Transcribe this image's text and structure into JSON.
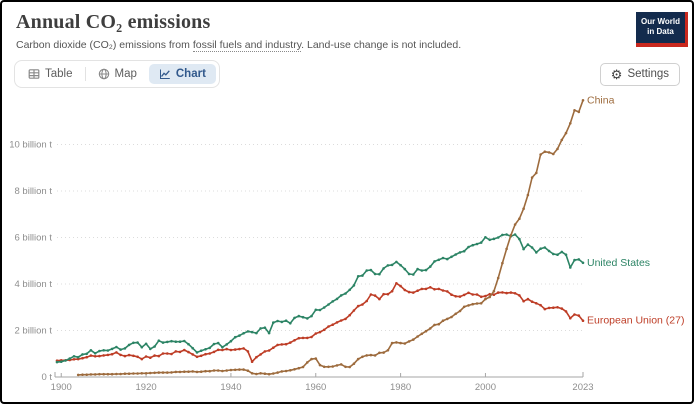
{
  "header": {
    "title": "Annual CO₂ emissions",
    "subtitle": {
      "prefix": "Carbon dioxide (CO₂) emissions from ",
      "link": "fossil fuels and industry",
      "suffix": ". Land-use change is not included."
    },
    "logo": {
      "line1": "Our World",
      "line2": "in Data",
      "bg": "#132B4D",
      "accent": "#C9281E"
    }
  },
  "toolbar": {
    "tabs": [
      {
        "label": "Table",
        "icon": "table-icon",
        "active": false
      },
      {
        "label": "Map",
        "icon": "globe-icon",
        "active": false
      },
      {
        "label": "Chart",
        "icon": "line-chart-icon",
        "active": true
      }
    ],
    "settings_label": "Settings",
    "settings_icon": "gear-icon"
  },
  "chart_data": {
    "type": "line",
    "title": "Annual CO₂ emissions",
    "xlabel": "",
    "ylabel": "",
    "unit": "billion t",
    "xlim": [
      1899,
      2023
    ],
    "ylim": [
      0,
      12.1
    ],
    "grid": true,
    "legend_position": "line-end-labels-right",
    "yticks": [
      {
        "value": 0,
        "label": "0 t"
      },
      {
        "value": 2,
        "label": "2 billion t"
      },
      {
        "value": 4,
        "label": "4 billion t"
      },
      {
        "value": 6,
        "label": "6 billion t"
      },
      {
        "value": 8,
        "label": "8 billion t"
      },
      {
        "value": 10,
        "label": "10 billion t"
      }
    ],
    "xticks": [
      1900,
      1920,
      1940,
      1960,
      1980,
      2000,
      2023
    ],
    "series": [
      {
        "name": "China",
        "color": "#9D6B3D",
        "start_year": 1904,
        "values": [
          0.09,
          0.1,
          0.1,
          0.11,
          0.11,
          0.12,
          0.12,
          0.12,
          0.12,
          0.13,
          0.13,
          0.14,
          0.14,
          0.15,
          0.15,
          0.16,
          0.16,
          0.17,
          0.18,
          0.19,
          0.19,
          0.19,
          0.2,
          0.22,
          0.22,
          0.23,
          0.23,
          0.24,
          0.22,
          0.23,
          0.25,
          0.25,
          0.28,
          0.28,
          0.26,
          0.28,
          0.3,
          0.31,
          0.32,
          0.32,
          0.27,
          0.16,
          0.13,
          0.16,
          0.14,
          0.12,
          0.15,
          0.19,
          0.24,
          0.26,
          0.29,
          0.33,
          0.38,
          0.43,
          0.63,
          0.77,
          0.79,
          0.51,
          0.44,
          0.44,
          0.45,
          0.5,
          0.54,
          0.44,
          0.43,
          0.57,
          0.77,
          0.87,
          0.93,
          0.94,
          0.93,
          1.04,
          1.05,
          1.15,
          1.46,
          1.49,
          1.46,
          1.44,
          1.53,
          1.61,
          1.74,
          1.86,
          1.97,
          2.09,
          2.24,
          2.27,
          2.42,
          2.5,
          2.58,
          2.72,
          2.84,
          3.02,
          3.08,
          3.13,
          3.16,
          3.17,
          3.35,
          3.44,
          3.69,
          4.26,
          4.9,
          5.51,
          6.1,
          6.56,
          6.81,
          7.24,
          7.83,
          8.58,
          8.78,
          9.57,
          9.69,
          9.66,
          9.59,
          9.81,
          10.2,
          10.49,
          10.91,
          11.47,
          11.4,
          11.9
        ]
      },
      {
        "name": "United States",
        "color": "#2C8465",
        "start_year": 1899,
        "values": [
          0.64,
          0.66,
          0.71,
          0.79,
          0.89,
          0.85,
          0.97,
          1.0,
          1.15,
          1.02,
          1.12,
          1.15,
          1.14,
          1.21,
          1.29,
          1.18,
          1.23,
          1.38,
          1.47,
          1.48,
          1.28,
          1.43,
          1.21,
          1.31,
          1.56,
          1.48,
          1.51,
          1.54,
          1.52,
          1.52,
          1.55,
          1.41,
          1.24,
          1.06,
          1.13,
          1.19,
          1.25,
          1.42,
          1.46,
          1.28,
          1.4,
          1.54,
          1.71,
          1.78,
          1.88,
          1.96,
          1.93,
          1.89,
          2.09,
          2.12,
          1.89,
          2.34,
          2.41,
          2.37,
          2.42,
          2.31,
          2.54,
          2.62,
          2.57,
          2.52,
          2.62,
          2.89,
          2.88,
          2.99,
          3.12,
          3.25,
          3.36,
          3.51,
          3.59,
          3.75,
          3.94,
          4.33,
          4.36,
          4.58,
          4.6,
          4.43,
          4.42,
          4.67,
          4.8,
          4.82,
          4.95,
          4.81,
          4.64,
          4.43,
          4.41,
          4.64,
          4.58,
          4.6,
          4.75,
          4.97,
          5.04,
          5.12,
          5.07,
          5.17,
          5.27,
          5.36,
          5.41,
          5.59,
          5.67,
          5.72,
          5.78,
          6.01,
          5.9,
          5.94,
          6.0,
          6.11,
          6.13,
          6.05,
          6.13,
          5.93,
          5.5,
          5.7,
          5.57,
          5.36,
          5.52,
          5.57,
          5.42,
          5.29,
          5.26,
          5.38,
          5.26,
          4.71,
          5.03,
          5.06,
          4.91
        ]
      },
      {
        "name": "European Union (27)",
        "color": "#BE3D26",
        "start_year": 1899,
        "values": [
          0.7,
          0.72,
          0.72,
          0.73,
          0.76,
          0.77,
          0.81,
          0.85,
          0.92,
          0.89,
          0.9,
          0.93,
          0.95,
          0.98,
          1.06,
          0.95,
          0.9,
          0.94,
          0.91,
          0.87,
          0.77,
          0.88,
          0.83,
          0.92,
          0.9,
          1.01,
          1.01,
          0.99,
          1.1,
          1.08,
          1.16,
          1.07,
          0.97,
          0.87,
          0.91,
          0.98,
          1.01,
          1.08,
          1.17,
          1.16,
          1.2,
          1.16,
          1.18,
          1.2,
          1.23,
          1.1,
          0.66,
          0.85,
          0.97,
          1.1,
          1.14,
          1.26,
          1.38,
          1.4,
          1.41,
          1.48,
          1.58,
          1.67,
          1.68,
          1.68,
          1.72,
          1.87,
          1.93,
          2.03,
          2.17,
          2.25,
          2.35,
          2.43,
          2.5,
          2.66,
          2.86,
          3.05,
          3.12,
          3.27,
          3.55,
          3.5,
          3.35,
          3.56,
          3.56,
          3.69,
          4.03,
          3.91,
          3.74,
          3.65,
          3.63,
          3.71,
          3.79,
          3.79,
          3.86,
          3.77,
          3.79,
          3.72,
          3.68,
          3.54,
          3.47,
          3.46,
          3.53,
          3.62,
          3.55,
          3.55,
          3.45,
          3.48,
          3.56,
          3.54,
          3.63,
          3.64,
          3.61,
          3.63,
          3.6,
          3.51,
          3.26,
          3.35,
          3.24,
          3.17,
          3.09,
          2.92,
          2.97,
          2.98,
          3.0,
          2.94,
          2.82,
          2.53,
          2.69,
          2.64,
          2.42
        ]
      }
    ]
  }
}
